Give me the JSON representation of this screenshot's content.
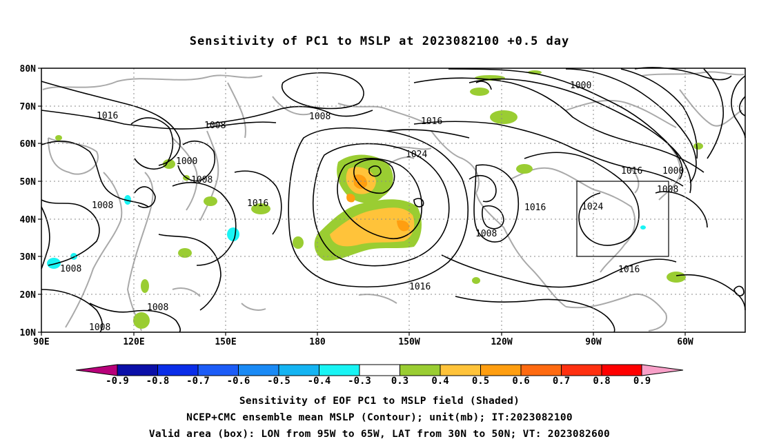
{
  "title": "Sensitivity of PC1 to MSLP at 2023082100 +0.5 day",
  "lat_labels": [
    "80N",
    "70N",
    "60N",
    "50N",
    "40N",
    "30N",
    "20N",
    "10N"
  ],
  "lon_labels": [
    "90E",
    "120E",
    "150E",
    "180",
    "150W",
    "120W",
    "90W",
    "60W"
  ],
  "contour_labels": [
    "1016",
    "1008",
    "1008",
    "1000",
    "1008",
    "1008",
    "1016",
    "1008",
    "1008",
    "1008",
    "1016",
    "1024",
    "1000",
    "1016",
    "1000",
    "1008",
    "1016",
    "1024",
    "1008",
    "1016",
    "1016"
  ],
  "colorbar": {
    "labels": [
      "-0.9",
      "-0.8",
      "-0.7",
      "-0.6",
      "-0.5",
      "-0.4",
      "-0.3",
      "0.3",
      "0.4",
      "0.5",
      "0.6",
      "0.7",
      "0.8",
      "0.9"
    ],
    "colors": [
      "#b8007a",
      "#0b0fa8",
      "#0a2de8",
      "#1c5cf7",
      "#1a8af5",
      "#14b4f2",
      "#19f4f4",
      "#ffffff",
      "#9acd32",
      "#ffc33a",
      "#ff9e10",
      "#ff6a10",
      "#ff3010",
      "#ff0000",
      "#f8a0c8"
    ]
  },
  "captions": [
    "Sensitivity of EOF PC1 to MSLP field (Shaded)",
    "NCEP+CMC ensemble mean MSLP (Contour); unit(mb); IT:2023082100",
    "Valid area (box): LON from 95W to 65W, LAT from 30N to 50N; VT: 2023082600"
  ]
}
